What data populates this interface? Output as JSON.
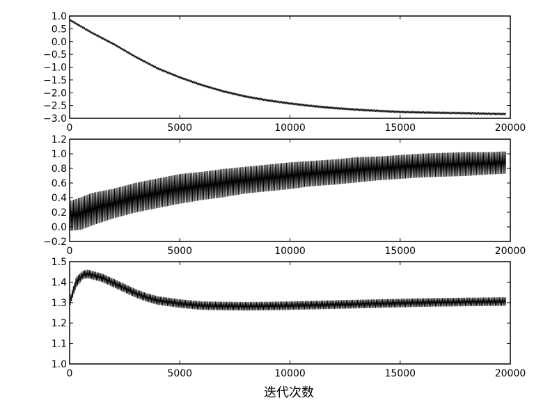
{
  "chart_data": [
    {
      "type": "line",
      "title": "",
      "xlabel": "",
      "ylabel": "",
      "xlim": [
        0,
        20000
      ],
      "ylim": [
        -3.0,
        1.0
      ],
      "x_ticks": [
        0,
        5000,
        10000,
        15000,
        20000
      ],
      "x_tick_labels": [
        "0",
        "5000",
        "10000",
        "15000",
        "20000"
      ],
      "y_ticks": [
        1.0,
        0.5,
        0.0,
        -0.5,
        -1.0,
        -1.5,
        -2.0,
        -2.5,
        -3.0
      ],
      "y_tick_labels": [
        "1.0",
        "0.5",
        "0.0",
        "−0.5",
        "−1.0",
        "−1.5",
        "−2.0",
        "−2.5",
        "−3.0"
      ],
      "grid": false,
      "line_color": "#000000",
      "series": [
        {
          "x": [
            0,
            1000,
            2000,
            3000,
            4000,
            5000,
            6000,
            7000,
            8000,
            9000,
            10000,
            11000,
            12000,
            13000,
            14000,
            15000,
            16000,
            17000,
            18000,
            19000,
            19800
          ],
          "center": [
            0.85,
            0.35,
            -0.1,
            -0.6,
            -1.05,
            -1.4,
            -1.7,
            -1.95,
            -2.15,
            -2.3,
            -2.42,
            -2.52,
            -2.6,
            -2.66,
            -2.71,
            -2.75,
            -2.77,
            -2.79,
            -2.8,
            -2.82,
            -2.83
          ],
          "band_half_width": [
            0.04,
            0.04,
            0.04,
            0.04,
            0.04,
            0.04,
            0.04,
            0.04,
            0.04,
            0.04,
            0.04,
            0.04,
            0.04,
            0.04,
            0.04,
            0.04,
            0.04,
            0.04,
            0.04,
            0.04,
            0.04
          ]
        }
      ]
    },
    {
      "type": "line",
      "title": "",
      "xlabel": "",
      "ylabel": "",
      "xlim": [
        0,
        20000
      ],
      "ylim": [
        -0.2,
        1.2
      ],
      "x_ticks": [
        0,
        5000,
        10000,
        15000,
        20000
      ],
      "x_tick_labels": [
        "0",
        "5000",
        "10000",
        "15000",
        "20000"
      ],
      "y_ticks": [
        1.2,
        1.0,
        0.8,
        0.6,
        0.4,
        0.2,
        0.0,
        -0.2
      ],
      "y_tick_labels": [
        "1.2",
        "1.0",
        "0.8",
        "0.6",
        "0.4",
        "0.2",
        "0.0",
        "−0.2"
      ],
      "grid": false,
      "line_color": "#000000",
      "series": [
        {
          "x": [
            0,
            500,
            1000,
            2000,
            3000,
            4000,
            5000,
            6000,
            7000,
            8000,
            9000,
            10000,
            11000,
            12000,
            13000,
            14000,
            15000,
            16000,
            17000,
            18000,
            19000,
            19800
          ],
          "center": [
            0.15,
            0.18,
            0.24,
            0.32,
            0.4,
            0.46,
            0.52,
            0.56,
            0.6,
            0.64,
            0.67,
            0.7,
            0.73,
            0.75,
            0.78,
            0.8,
            0.82,
            0.84,
            0.85,
            0.86,
            0.87,
            0.88
          ],
          "band_half_width": [
            0.2,
            0.22,
            0.22,
            0.2,
            0.2,
            0.2,
            0.2,
            0.19,
            0.19,
            0.18,
            0.18,
            0.18,
            0.17,
            0.17,
            0.17,
            0.16,
            0.16,
            0.16,
            0.16,
            0.16,
            0.15,
            0.15
          ]
        }
      ]
    },
    {
      "type": "line",
      "title": "",
      "xlabel": "迭代次数",
      "ylabel": "",
      "xlim": [
        0,
        20000
      ],
      "ylim": [
        1.0,
        1.5
      ],
      "x_ticks": [
        0,
        5000,
        10000,
        15000,
        20000
      ],
      "x_tick_labels": [
        "0",
        "5000",
        "10000",
        "15000",
        "20000"
      ],
      "y_ticks": [
        1.5,
        1.4,
        1.3,
        1.2,
        1.1,
        1.0
      ],
      "y_tick_labels": [
        "1.5",
        "1.4",
        "1.3",
        "1.2",
        "1.1",
        "1.0"
      ],
      "grid": false,
      "line_color": "#000000",
      "series": [
        {
          "x": [
            0,
            300,
            600,
            800,
            1000,
            1500,
            2000,
            2500,
            3000,
            3500,
            4000,
            5000,
            6000,
            7000,
            8000,
            9000,
            10000,
            12000,
            14000,
            16000,
            18000,
            19800
          ],
          "center": [
            1.3,
            1.4,
            1.435,
            1.44,
            1.435,
            1.42,
            1.395,
            1.37,
            1.345,
            1.325,
            1.31,
            1.295,
            1.285,
            1.283,
            1.282,
            1.283,
            1.285,
            1.29,
            1.295,
            1.3,
            1.303,
            1.305
          ],
          "band_half_width": [
            0.02,
            0.025,
            0.02,
            0.02,
            0.02,
            0.02,
            0.02,
            0.02,
            0.02,
            0.02,
            0.02,
            0.02,
            0.02,
            0.02,
            0.02,
            0.02,
            0.02,
            0.02,
            0.02,
            0.02,
            0.02,
            0.02
          ]
        }
      ]
    }
  ]
}
